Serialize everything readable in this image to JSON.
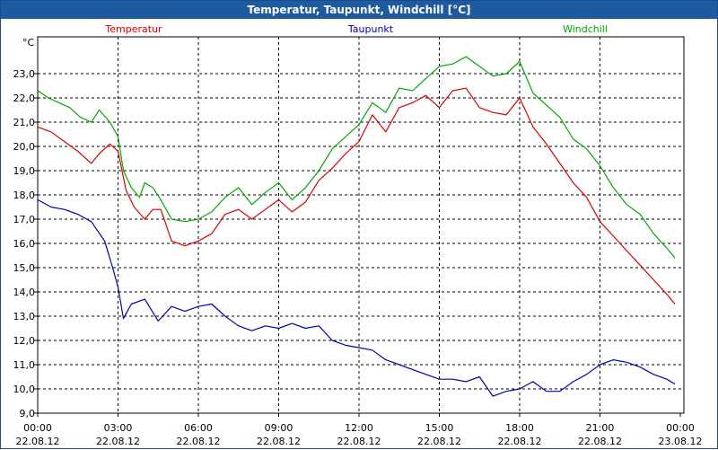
{
  "window": {
    "title": "Temperatur, Taupunkt, Windchill [°C]"
  },
  "chart_data": {
    "type": "line",
    "title": "Temperatur, Taupunkt, Windchill [°C]",
    "ylabel": "°C",
    "ylim": [
      9.0,
      24.5
    ],
    "xlim": [
      0,
      24
    ],
    "y_ticks": [
      "9,0",
      "10,0",
      "11,0",
      "12,0",
      "13,0",
      "14,0",
      "15,0",
      "16,0",
      "17,0",
      "18,0",
      "19,0",
      "20,0",
      "21,0",
      "22,0",
      "23,0"
    ],
    "x_ticks": [
      {
        "time": "00:00",
        "date": "22.08.12"
      },
      {
        "time": "03:00",
        "date": "22.08.12"
      },
      {
        "time": "06:00",
        "date": "22.08.12"
      },
      {
        "time": "09:00",
        "date": "22.08.12"
      },
      {
        "time": "12:00",
        "date": "22.08.12"
      },
      {
        "time": "15:00",
        "date": "22.08.12"
      },
      {
        "time": "18:00",
        "date": "22.08.12"
      },
      {
        "time": "21:00",
        "date": "22.08.12"
      },
      {
        "time": "00:00",
        "date": "23.08.12"
      }
    ],
    "grid": true,
    "series": [
      {
        "name": "Temperatur",
        "color": "#dd0000",
        "x": [
          0,
          0.5,
          1,
          1.5,
          2,
          2.3,
          2.7,
          3,
          3.3,
          3.6,
          4,
          4.3,
          4.6,
          5,
          5.5,
          6,
          6.5,
          7,
          7.5,
          8,
          8.5,
          9,
          9.5,
          10,
          10.5,
          11,
          11.5,
          12,
          12.5,
          13,
          13.5,
          14,
          14.5,
          15,
          15.5,
          16,
          16.5,
          17,
          17.5,
          18,
          18.5,
          19,
          19.5,
          20,
          20.5,
          21,
          21.5,
          22,
          22.5,
          23,
          23.5,
          23.8
        ],
        "values": [
          20.8,
          20.6,
          20.2,
          19.8,
          19.3,
          19.7,
          20.1,
          19.8,
          18.2,
          17.5,
          17.0,
          17.4,
          17.4,
          16.1,
          15.9,
          16.1,
          16.4,
          17.2,
          17.4,
          17.0,
          17.4,
          17.8,
          17.3,
          17.7,
          18.6,
          19.1,
          19.7,
          20.2,
          21.3,
          20.6,
          21.6,
          21.8,
          22.1,
          21.6,
          22.3,
          22.4,
          21.6,
          21.4,
          21.3,
          22.0,
          20.8,
          20.1,
          19.3,
          18.5,
          17.9,
          16.9,
          16.3,
          15.7,
          15.1,
          14.5,
          13.9,
          13.5
        ]
      },
      {
        "name": "Taupunkt",
        "color": "#0000bb",
        "x": [
          0,
          0.5,
          1,
          1.5,
          2,
          2.5,
          2.8,
          3,
          3.2,
          3.5,
          4,
          4.5,
          5,
          5.5,
          6,
          6.5,
          7,
          7.5,
          8,
          8.5,
          9,
          9.5,
          10,
          10.5,
          11,
          11.5,
          12,
          12.5,
          13,
          13.5,
          14,
          14.5,
          15,
          15.5,
          16,
          16.5,
          17,
          17.5,
          18,
          18.5,
          19,
          19.5,
          20,
          20.5,
          21,
          21.5,
          22,
          22.5,
          23,
          23.5,
          23.8
        ],
        "values": [
          17.8,
          17.5,
          17.4,
          17.2,
          16.9,
          16.1,
          15.0,
          14.2,
          12.9,
          13.5,
          13.7,
          12.8,
          13.4,
          13.2,
          13.4,
          13.5,
          13.0,
          12.6,
          12.4,
          12.6,
          12.5,
          12.7,
          12.5,
          12.6,
          12.0,
          11.8,
          11.7,
          11.6,
          11.2,
          11.0,
          10.8,
          10.6,
          10.4,
          10.4,
          10.3,
          10.5,
          9.7,
          9.9,
          10.0,
          10.3,
          9.9,
          9.9,
          10.3,
          10.6,
          11.0,
          11.2,
          11.1,
          10.9,
          10.6,
          10.4,
          10.2
        ]
      },
      {
        "name": "Windchill",
        "color": "#00aa00",
        "x": [
          0,
          0.4,
          0.8,
          1.2,
          1.6,
          2,
          2.3,
          2.7,
          3,
          3.2,
          3.5,
          3.8,
          4,
          4.3,
          4.6,
          5,
          5.5,
          6,
          6.5,
          7,
          7.5,
          8,
          8.5,
          9,
          9.5,
          10,
          10.5,
          11,
          11.5,
          12,
          12.5,
          13,
          13.5,
          14,
          14.5,
          15,
          15.5,
          16,
          16.5,
          17,
          17.5,
          18,
          18.5,
          19,
          19.5,
          20,
          20.5,
          21,
          21.5,
          22,
          22.5,
          23,
          23.5,
          23.8
        ],
        "values": [
          22.3,
          22.0,
          21.8,
          21.6,
          21.2,
          21.0,
          21.5,
          21.0,
          20.4,
          19.0,
          18.3,
          17.9,
          18.5,
          18.3,
          17.8,
          17.0,
          16.9,
          17.0,
          17.3,
          17.9,
          18.3,
          17.6,
          18.1,
          18.5,
          17.8,
          18.3,
          19.0,
          19.9,
          20.4,
          20.9,
          21.8,
          21.4,
          22.4,
          22.3,
          22.8,
          23.3,
          23.4,
          23.7,
          23.3,
          22.9,
          23.0,
          23.5,
          22.2,
          21.7,
          21.2,
          20.3,
          19.9,
          19.2,
          18.3,
          17.6,
          17.2,
          16.4,
          15.8,
          15.4
        ]
      }
    ]
  }
}
